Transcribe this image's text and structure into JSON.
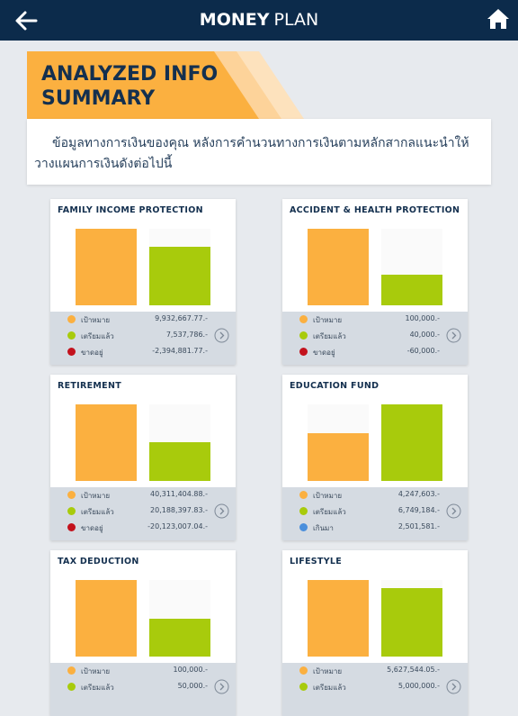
{
  "header": {
    "title_bold": "MONEY",
    "title_light": "PLAN"
  },
  "banner": {
    "title": "ANALYZED INFO SUMMARY",
    "description": "ข้อมูลทางการเงินของคุณ หลังการคำนวนทางการเงินตามหลักสากลแนะนำให้วางแผนการเงินดังต่อไปนี้"
  },
  "cards": [
    {
      "title": "FAMILY INCOME PROTECTION",
      "rows": [
        {
          "label": "เป้าหมาย",
          "value": 9932667.77,
          "value_label": "9,932,667.77.-",
          "color": "#fbb040"
        },
        {
          "label": "เตรียมแล้ว",
          "value": 7537786,
          "value_label": "7,537,786.-",
          "color": "#a8cb0c"
        },
        {
          "label": "ขาดอยู่",
          "value_label": "-2,394,881.77.-",
          "color": "#c3121d"
        }
      ]
    },
    {
      "title": "ACCIDENT & HEALTH PROTECTION",
      "rows": [
        {
          "label": "เป้าหมาย",
          "value": 100000,
          "value_label": "100,000.-",
          "color": "#fbb040"
        },
        {
          "label": "เตรียมแล้ว",
          "value": 40000,
          "value_label": "40,000.-",
          "color": "#a8cb0c"
        },
        {
          "label": "ขาดอยู่",
          "value_label": "-60,000.-",
          "color": "#c3121d"
        }
      ]
    },
    {
      "title": "RETIREMENT",
      "rows": [
        {
          "label": "เป้าหมาย",
          "value": 40311404.88,
          "value_label": "40,311,404.88.-",
          "color": "#fbb040"
        },
        {
          "label": "เตรียมแล้ว",
          "value": 20188397.83,
          "value_label": "20,188,397.83.-",
          "color": "#a8cb0c"
        },
        {
          "label": "ขาดอยู่",
          "value_label": "-20,123,007.04.-",
          "color": "#c3121d"
        }
      ]
    },
    {
      "title": "EDUCATION FUND",
      "rows": [
        {
          "label": "เป้าหมาย",
          "value": 4247603,
          "value_label": "4,247,603.-",
          "color": "#fbb040"
        },
        {
          "label": "เตรียมแล้ว",
          "value": 6749184,
          "value_label": "6,749,184.-",
          "color": "#a8cb0c"
        },
        {
          "label": "เกินมา",
          "value_label": "2,501,581.-",
          "color": "#4a8fdc"
        }
      ]
    },
    {
      "title": "TAX DEDUCTION",
      "rows": [
        {
          "label": "เป้าหมาย",
          "value": 100000,
          "value_label": "100,000.-",
          "color": "#fbb040"
        },
        {
          "label": "เตรียมแล้ว",
          "value": 50000,
          "value_label": "50,000.-",
          "color": "#a8cb0c"
        }
      ]
    },
    {
      "title": "LIFESTYLE",
      "rows": [
        {
          "label": "เป้าหมาย",
          "value": 5627544.05,
          "value_label": "5,627,544.05.-",
          "color": "#fbb040"
        },
        {
          "label": "เตรียมแล้ว",
          "value": 5000000,
          "value_label": "5,000,000.-",
          "color": "#a8cb0c"
        }
      ]
    }
  ]
}
